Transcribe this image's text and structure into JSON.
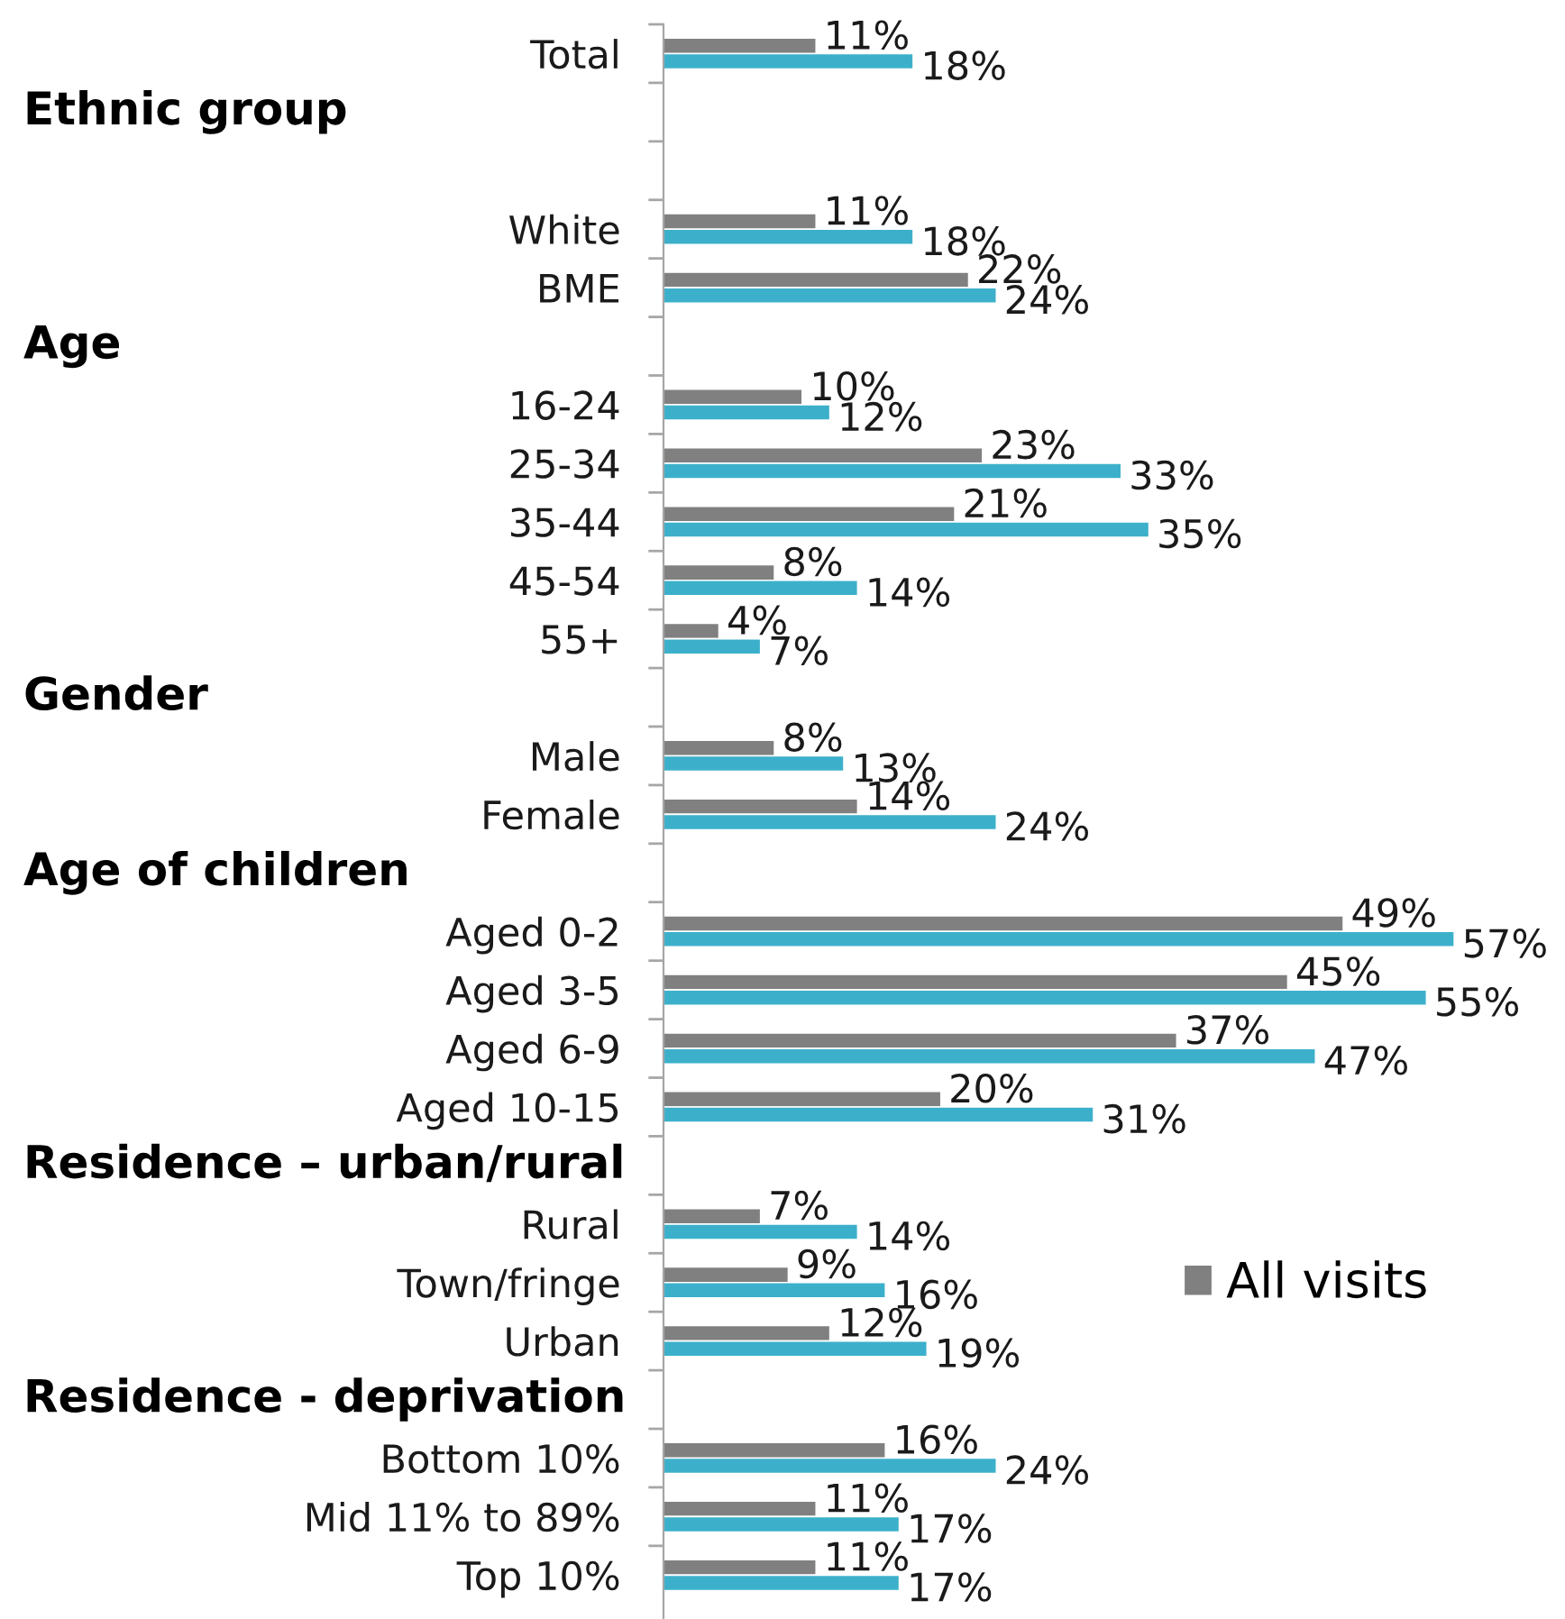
{
  "chart_data": {
    "type": "bar",
    "orientation": "horizontal",
    "legend": "bottom right",
    "categories": [
      "Total",
      null,
      null,
      "White",
      "BME",
      null,
      "16-24",
      "25-34",
      "35-44",
      "45-54",
      "55+",
      null,
      "Male",
      "Female",
      null,
      "Aged 0-2",
      "Aged 3-5",
      "Aged 6-9",
      "Aged 10-15",
      null,
      "Rural",
      "Town/fringe",
      "Urban",
      null,
      "Bottom 10%",
      "Mid 11% to 89%",
      "Top 10%"
    ],
    "annotations": [
      "Ethnic group",
      "Age",
      "Gender",
      "Age of children",
      "Residence – urban/rural",
      "Residence - deprivation"
    ],
    "series": [
      {
        "name": "All visits",
        "color": "#808080",
        "values": [
          11,
          null,
          null,
          11,
          22,
          null,
          10,
          23,
          21,
          8,
          4,
          null,
          8,
          14,
          null,
          49,
          45,
          37,
          20,
          null,
          7,
          9,
          12,
          null,
          16,
          11,
          11
        ],
        "value_labels": [
          "11%",
          null,
          null,
          "11%",
          "22%",
          null,
          "10%",
          "23%",
          "21%",
          "8%",
          "4%",
          null,
          "8%",
          "14%",
          null,
          "49%",
          "45%",
          "37%",
          "20%",
          null,
          "7%",
          "9%",
          "12%",
          null,
          "16%",
          "11%",
          "11%"
        ]
      },
      {
        "color": "#3cb0cb",
        "values": [
          18,
          null,
          null,
          18,
          24,
          null,
          12,
          33,
          35,
          14,
          7,
          null,
          13,
          24,
          null,
          57,
          55,
          47,
          31,
          null,
          14,
          16,
          19,
          null,
          24,
          17,
          17
        ],
        "value_labels": [
          "18%",
          null,
          null,
          "18%",
          "24%",
          null,
          "12%",
          "33%",
          "35%",
          "14%",
          "7%",
          null,
          "13%",
          "24%",
          null,
          "57%",
          "55%",
          "47%",
          "31%",
          null,
          "14%",
          "16%",
          "19%",
          null,
          "24%",
          "17%",
          "17%"
        ]
      }
    ]
  }
}
